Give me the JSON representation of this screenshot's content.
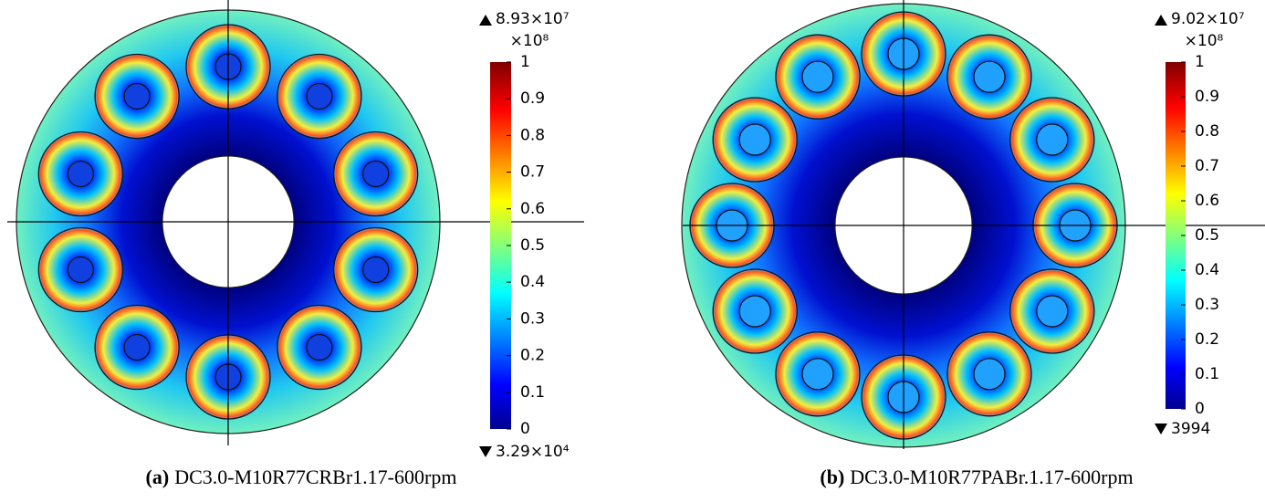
{
  "panels": [
    {
      "label": "(a)",
      "caption": "DC3.0-M10R77CRBr1.17-600rpm",
      "colorbar": {
        "max": "8.93×10⁷",
        "scale": "×10⁸",
        "min": "3.29×10⁴",
        "range": [
          0,
          1
        ],
        "ticks": [
          0,
          0.1,
          0.2,
          0.3,
          0.4,
          0.5,
          0.6,
          0.7,
          0.8,
          0.9,
          1
        ]
      }
    },
    {
      "label": "(b)",
      "caption": "DC3.0-M10R77PABr.1.17-600rpm",
      "colorbar": {
        "max": "9.02×10⁷",
        "scale": "×10⁸",
        "min": "3994",
        "range": [
          0,
          1
        ],
        "ticks": [
          0,
          0.1,
          0.2,
          0.3,
          0.4,
          0.5,
          0.6,
          0.7,
          0.8,
          0.9,
          1
        ]
      }
    }
  ]
}
